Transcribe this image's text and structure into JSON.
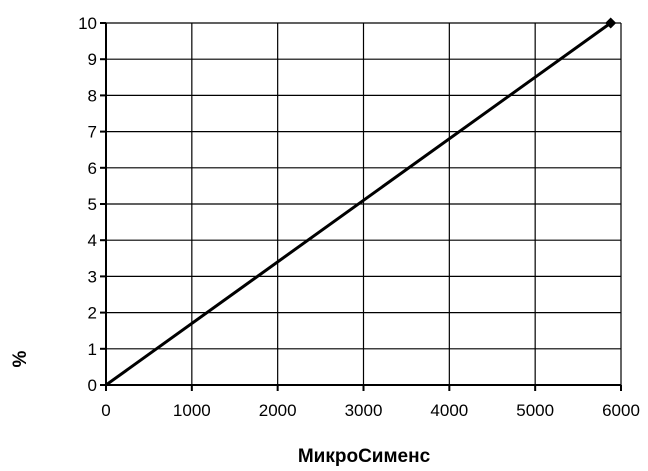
{
  "chart_data": {
    "type": "line",
    "title": "",
    "xlabel": "МикроСименс",
    "ylabel": "%",
    "xlim": [
      0,
      6000
    ],
    "ylim": [
      0,
      10
    ],
    "x_ticks": [
      0,
      1000,
      2000,
      3000,
      4000,
      5000,
      6000
    ],
    "y_ticks": [
      0,
      1,
      2,
      3,
      4,
      5,
      6,
      7,
      8,
      9,
      10
    ],
    "x_tick_labels": [
      "0",
      "1000",
      "2000",
      "3000",
      "4000",
      "5000",
      "6000"
    ],
    "y_tick_labels": [
      "0",
      "1",
      "2",
      "3",
      "4",
      "5",
      "6",
      "7",
      "8",
      "9",
      "10"
    ],
    "grid": true,
    "legend": "none",
    "series": [
      {
        "color": "#000000",
        "x": [
          0,
          5880
        ],
        "y": [
          0,
          10
        ],
        "markers": [
          "none",
          "diamond"
        ]
      }
    ]
  }
}
